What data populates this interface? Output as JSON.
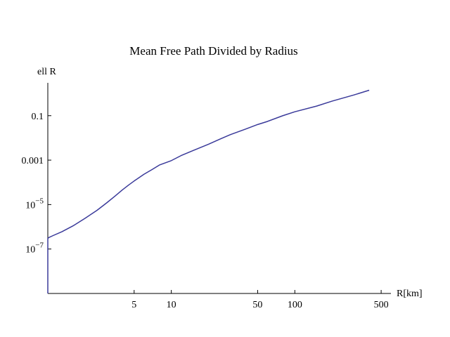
{
  "chart_data": {
    "type": "line",
    "title": "Mean Free Path Divided by  Radius",
    "xlabel": "R[km]",
    "ylabel": "ell R",
    "x_scale": "log",
    "y_scale": "log",
    "xlim": [
      1,
      600
    ],
    "ylim": [
      1e-09,
      3
    ],
    "x_ticks": [
      {
        "value": 5,
        "label": "5"
      },
      {
        "value": 10,
        "label": "10"
      },
      {
        "value": 50,
        "label": "50"
      },
      {
        "value": 100,
        "label": "100"
      },
      {
        "value": 500,
        "label": "500"
      }
    ],
    "y_ticks": [
      {
        "value": 1e-07,
        "base": "10",
        "exp": "−7"
      },
      {
        "value": 1e-05,
        "base": "10",
        "exp": "−5"
      },
      {
        "value": 0.001,
        "label": "0.001"
      },
      {
        "value": 0.1,
        "label": "0.1"
      }
    ],
    "series": [
      {
        "color": "#3a3a9a",
        "x": [
          1.0,
          1.0,
          1.02,
          1.1,
          1.3,
          1.6,
          2.0,
          2.5,
          3.0,
          3.5,
          4.0,
          4.5,
          5.0,
          6.0,
          7.0,
          8.0,
          10.0,
          12.0,
          15.0,
          20.0,
          25.0,
          30.0,
          40.0,
          50.0,
          60.0,
          80.0,
          100.0,
          150.0,
          200.0,
          300.0,
          400.0
        ],
        "y": [
          1e-09,
          3e-07,
          3.3e-07,
          4e-07,
          6e-07,
          1.1e-06,
          2.4e-06,
          5.5e-06,
          1.2e-05,
          2.4e-05,
          4.5e-05,
          7.5e-05,
          0.000115,
          0.00023,
          0.00038,
          0.0006,
          0.00095,
          0.0016,
          0.0027,
          0.0052,
          0.009,
          0.014,
          0.025,
          0.04,
          0.055,
          0.1,
          0.15,
          0.27,
          0.45,
          0.85,
          1.4
        ]
      }
    ]
  }
}
